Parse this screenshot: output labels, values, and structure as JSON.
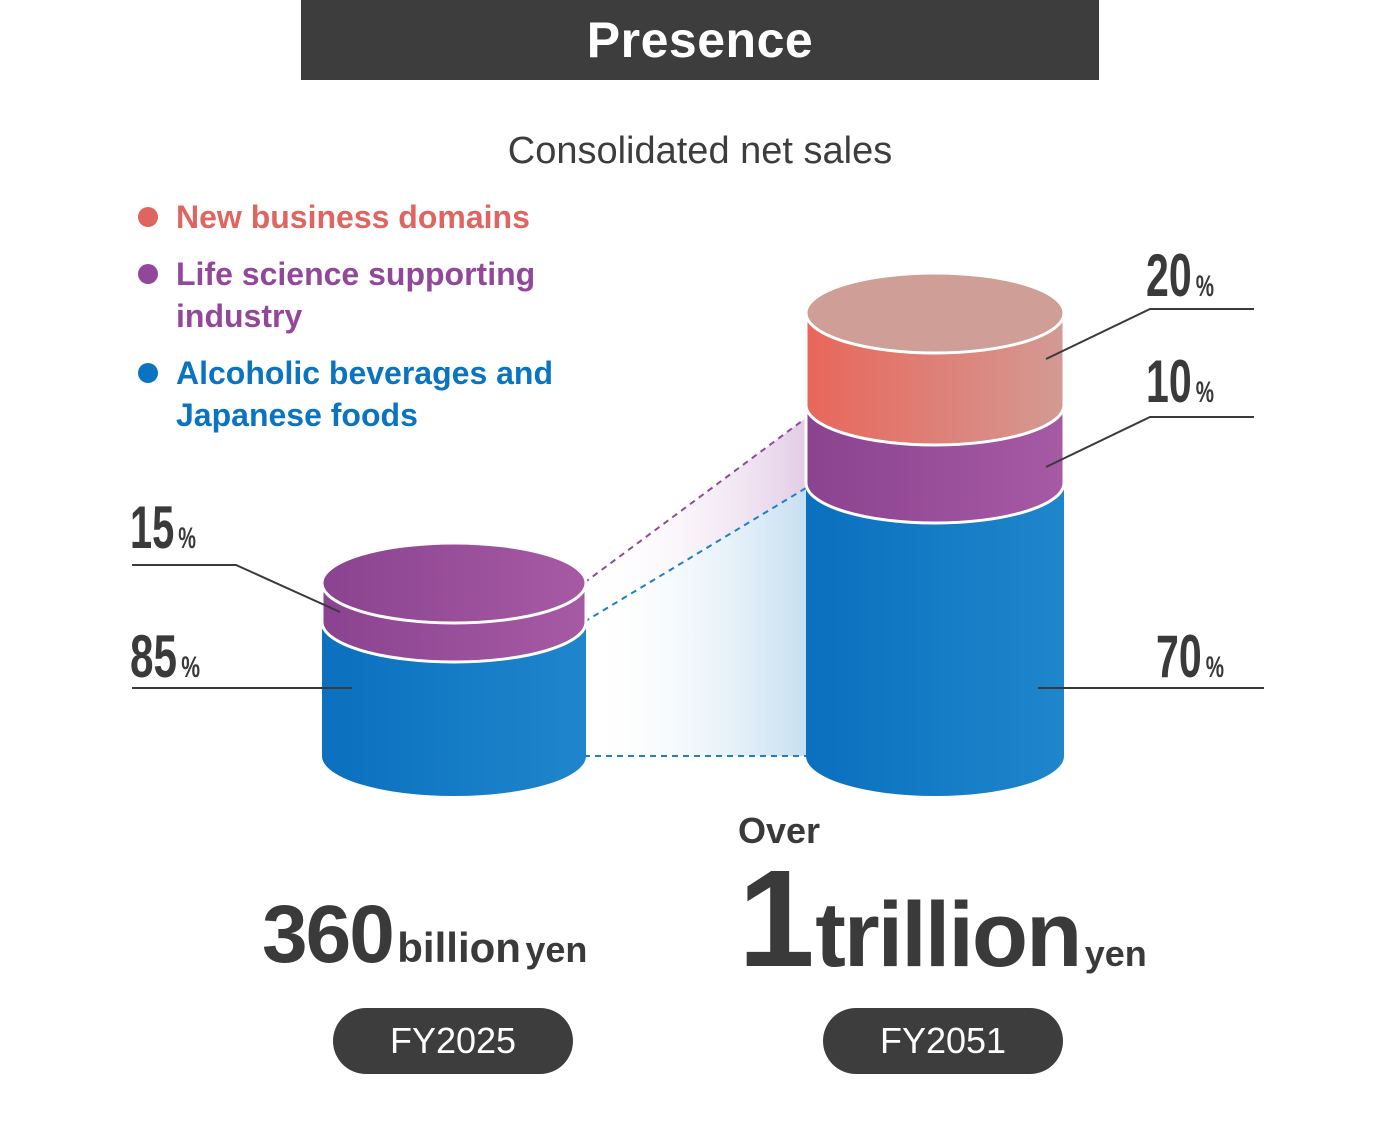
{
  "header": {
    "title": "Presence"
  },
  "chart_data": {
    "type": "stacked-cylinder",
    "title": "Consolidated net sales",
    "legend": [
      {
        "name": "New business domains",
        "color": "#e06560"
      },
      {
        "name": "Life science supporting industry",
        "color": "#93479a"
      },
      {
        "name": "Alcoholic beverages and Japanese foods",
        "color": "#1f7fc9"
      }
    ],
    "categories": [
      "FY2025",
      "FY2051"
    ],
    "series": [
      {
        "name": "Alcoholic beverages and Japanese foods",
        "values": [
          85,
          70
        ]
      },
      {
        "name": "Life science supporting industry",
        "values": [
          15,
          10
        ]
      },
      {
        "name": "New business domains",
        "values": [
          0,
          20
        ]
      }
    ],
    "unit": "%",
    "labels": {
      "fy2025": {
        "top": "15",
        "bottom": "85",
        "unit": "%"
      },
      "fy2051": {
        "top": "20",
        "mid": "10",
        "bottom": "70",
        "unit": "%"
      }
    },
    "totals": [
      {
        "category": "FY2025",
        "number": "360",
        "scale": "billion",
        "unit": "yen",
        "prefix": ""
      },
      {
        "category": "FY2051",
        "number": "1",
        "scale": "trillion",
        "unit": "yen",
        "prefix": "Over"
      }
    ]
  }
}
